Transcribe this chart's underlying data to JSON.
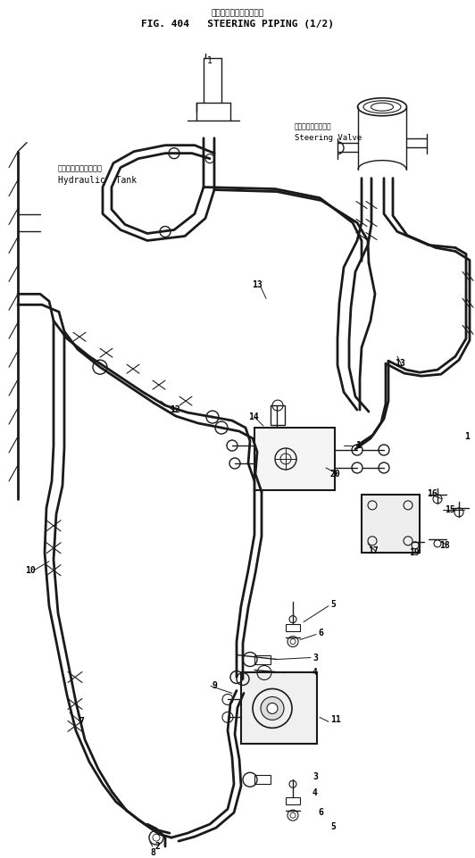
{
  "title_jp": "ステアリングパイピング",
  "title_en": "FIG. 404   STEERING PIPING (1/2)",
  "bg_color": "#ffffff",
  "line_color": "#1a1a1a",
  "text_color": "#000000",
  "lbl_hyd_jp": "ハイドロリックタンク",
  "lbl_hyd_en": "Hydraulic  Tank",
  "lbl_sv_jp": "ステアリングバルブ",
  "lbl_sv_en": "Steering Valve",
  "figsize": [
    5.32,
    9.61
  ],
  "dpi": 100
}
